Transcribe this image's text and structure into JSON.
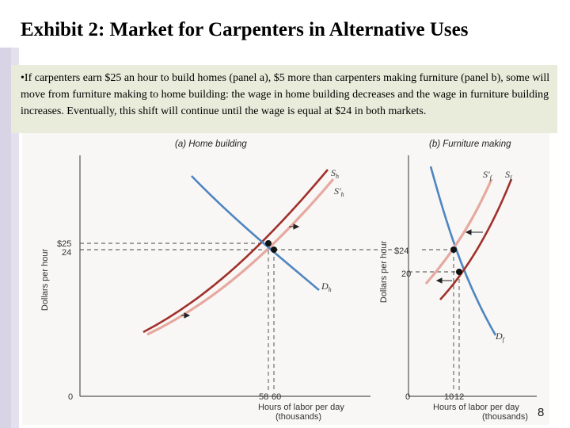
{
  "slide": {
    "title": "Exhibit 2: Market for Carpenters in Alternative Uses",
    "bullet": "•If carpenters earn $25 an hour to build homes (panel a), $5 more than carpenters  making furniture (panel b), some will move from furniture making to home building: the wage in home building decreases and the wage in furniture building increases. Eventually, this shift will continue until the wage is equal at $24 in both markets.",
    "page_number": "8"
  },
  "colors": {
    "supply_dark": "#a0302a",
    "supply_light": "#e6a9a0",
    "demand": "#4f85c0",
    "axis": "#555555",
    "textbox_bg": "#e9ebdb"
  },
  "chart_data": [
    {
      "type": "line",
      "panel_title": "(a) Home building",
      "xlabel": "Hours of labor per day\n(thousands)",
      "ylabel": "Dollars per hour",
      "origin_label": "0",
      "x_tick_labels": [
        "58",
        "60"
      ],
      "y_tick_labels": [
        "$25",
        "24"
      ],
      "equilibria": [
        {
          "x": 58,
          "y": 25
        },
        {
          "x": 60,
          "y": 24
        }
      ],
      "series": [
        {
          "name": "S_h",
          "label_main": "S",
          "label_sub": "h",
          "role": "supply (initial)",
          "color": "#a0302a"
        },
        {
          "name": "S'_h",
          "label_main": "S'",
          "label_sub": "h",
          "role": "supply (shifted right)",
          "color": "#e6a9a0"
        },
        {
          "name": "D_h",
          "label_main": "D",
          "label_sub": "h",
          "role": "demand",
          "color": "#4f85c0"
        }
      ],
      "shift_arrows": "rightward"
    },
    {
      "type": "line",
      "panel_title": "(b) Furniture making",
      "xlabel": "Hours of labor per day\n(thousands)",
      "ylabel": "Dollars per hour",
      "origin_label": "0",
      "x_tick_labels": [
        "10",
        "12"
      ],
      "y_tick_labels": [
        "$24",
        "20"
      ],
      "equilibria": [
        {
          "x": 10,
          "y": 24
        },
        {
          "x": 12,
          "y": 20
        }
      ],
      "series": [
        {
          "name": "S'_f",
          "label_main": "S'",
          "label_sub": "f",
          "role": "supply (shifted left)",
          "color": "#e6a9a0"
        },
        {
          "name": "S_f",
          "label_main": "S",
          "label_sub": "f",
          "role": "supply (initial)",
          "color": "#a0302a"
        },
        {
          "name": "D_f",
          "label_main": "D",
          "label_sub": "f",
          "role": "demand",
          "color": "#4f85c0"
        }
      ],
      "shift_arrows": "leftward"
    }
  ]
}
